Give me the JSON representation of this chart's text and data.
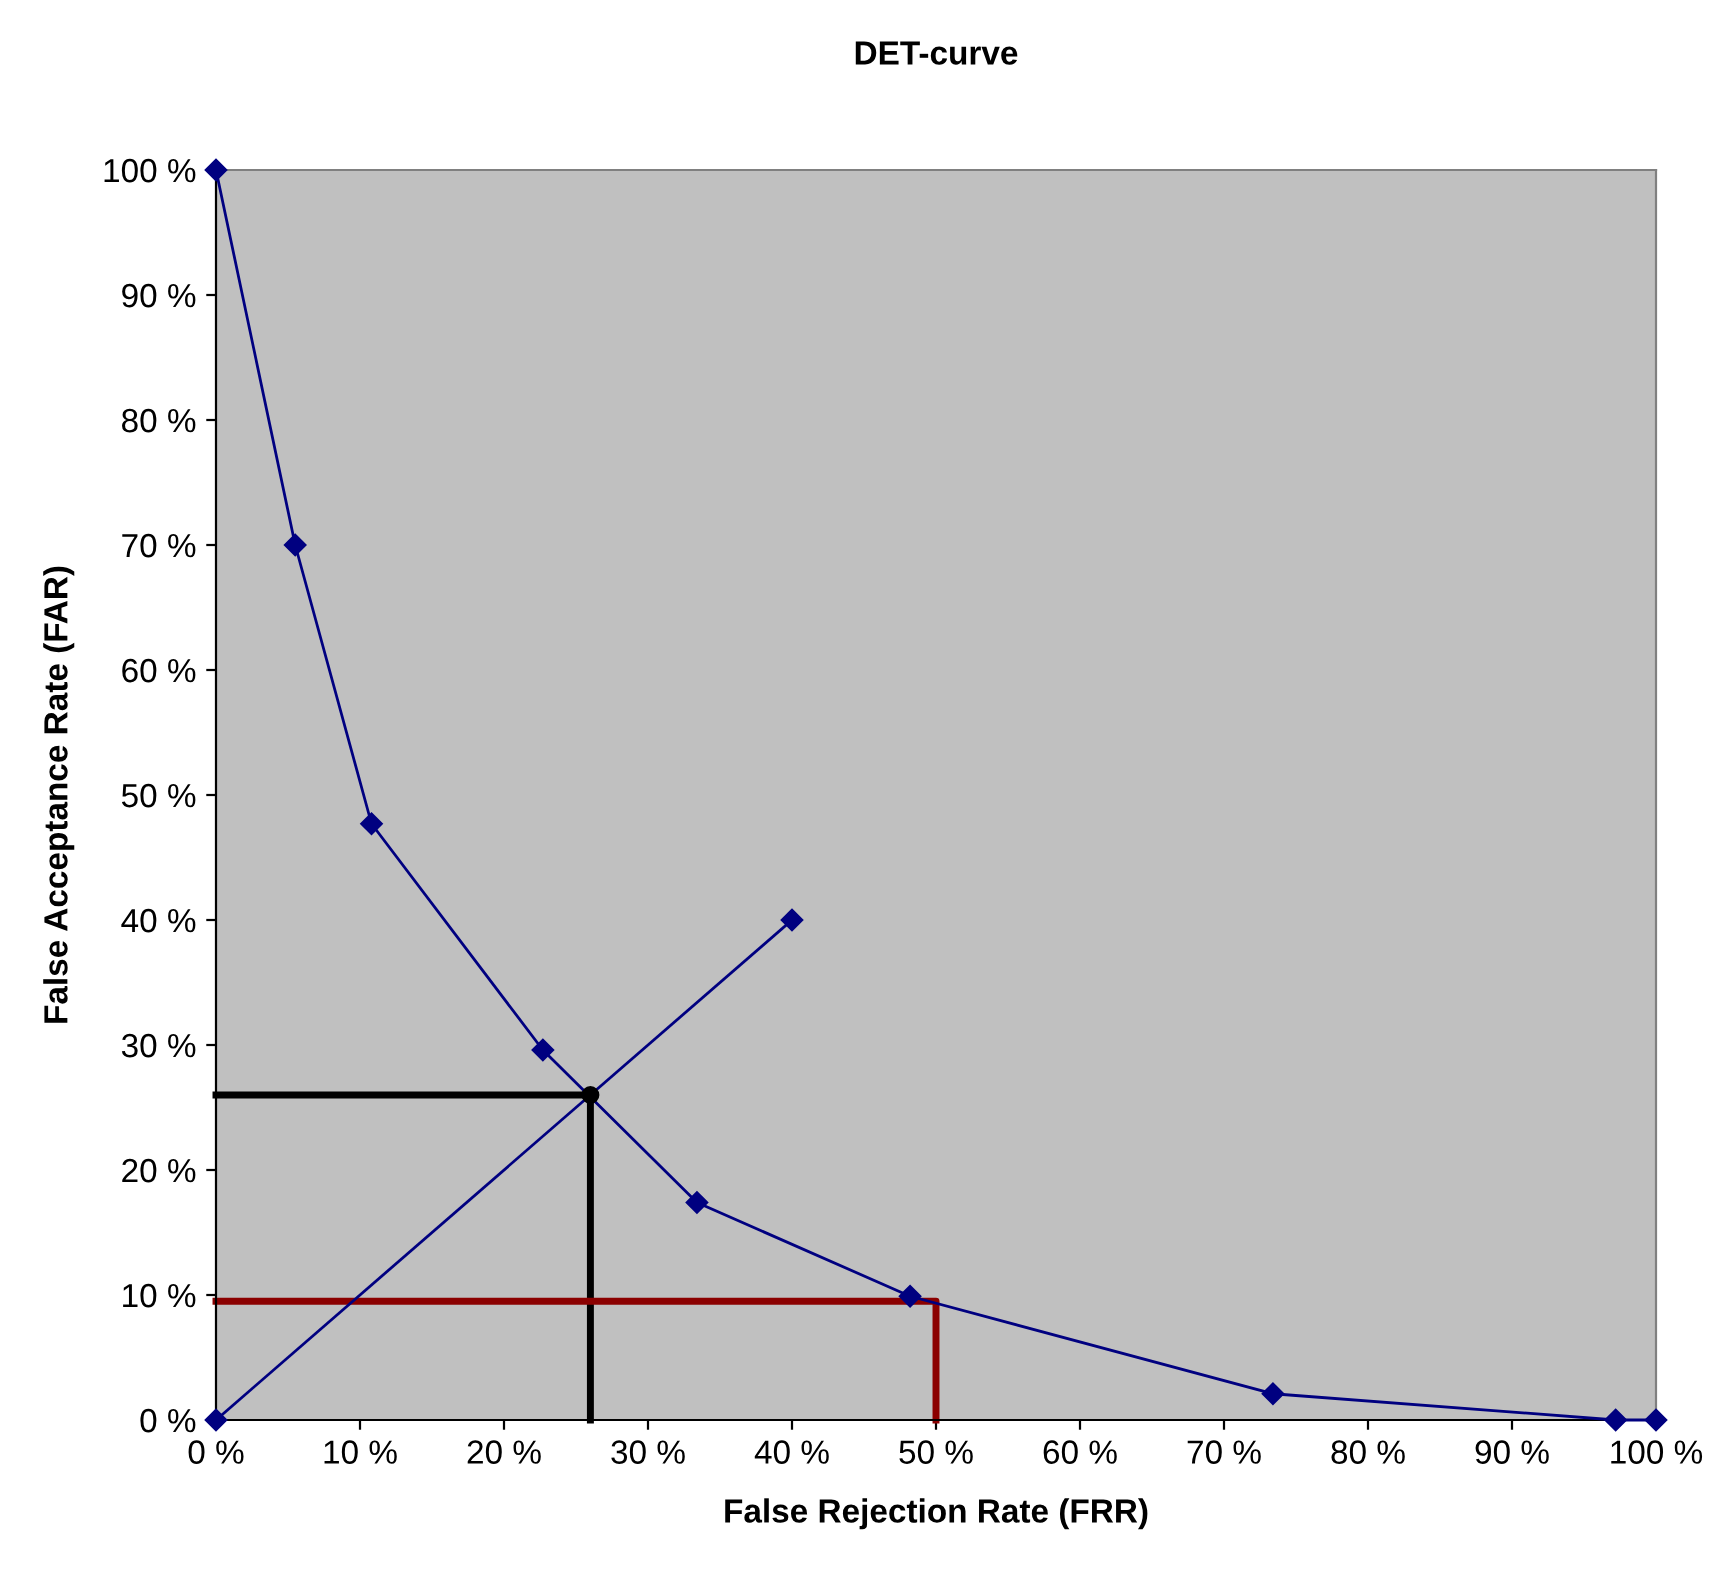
{
  "chart_data": {
    "type": "line",
    "title": "DET-curve",
    "xlabel": "False Rejection Rate (FRR)",
    "ylabel": "False Acceptance Rate (FAR)",
    "series": [
      {
        "color": "#000080",
        "marker": "diamond",
        "x": [
          0,
          5.5,
          10.8,
          22.7,
          33.4,
          48.2,
          73.4,
          97.2,
          100
        ],
        "values": [
          100,
          70,
          47.7,
          29.6,
          17.4,
          9.9,
          2.1,
          0,
          0
        ]
      },
      {
        "color": "#000080",
        "marker": "diamond",
        "x": [
          0,
          40
        ],
        "values": [
          0,
          40
        ]
      },
      {
        "color": "#000000",
        "marker": "none",
        "x": [
          0,
          26,
          26
        ],
        "values": [
          26,
          26,
          0
        ]
      },
      {
        "type": "scatter",
        "color": "#000000",
        "marker": "circle",
        "x": [
          26
        ],
        "values": [
          26
        ]
      },
      {
        "color": "#8b0000",
        "marker": "none",
        "x": [
          0,
          50,
          50
        ],
        "values": [
          9.5,
          9.5,
          0
        ]
      }
    ],
    "xlim": [
      0,
      100
    ],
    "ylim": [
      0,
      100
    ],
    "xticks": [
      {
        "value": 0,
        "label": "0 %"
      },
      {
        "value": 10,
        "label": "10 %"
      },
      {
        "value": 20,
        "label": "20 %"
      },
      {
        "value": 30,
        "label": "30 %"
      },
      {
        "value": 40,
        "label": "40 %"
      },
      {
        "value": 50,
        "label": "50 %"
      },
      {
        "value": 60,
        "label": "60 %"
      },
      {
        "value": 70,
        "label": "70 %"
      },
      {
        "value": 80,
        "label": "80 %"
      },
      {
        "value": 90,
        "label": "90 %"
      },
      {
        "value": 100,
        "label": "100 %"
      }
    ],
    "yticks": [
      {
        "value": 0,
        "label": "0 %"
      },
      {
        "value": 10,
        "label": "10 %"
      },
      {
        "value": 20,
        "label": "20 %"
      },
      {
        "value": 30,
        "label": "30 %"
      },
      {
        "value": 40,
        "label": "40 %"
      },
      {
        "value": 50,
        "label": "50 %"
      },
      {
        "value": 60,
        "label": "60 %"
      },
      {
        "value": 70,
        "label": "70 %"
      },
      {
        "value": 80,
        "label": "80 %"
      },
      {
        "value": 90,
        "label": "90 %"
      },
      {
        "value": 100,
        "label": "100 %"
      }
    ],
    "grid": false
  }
}
